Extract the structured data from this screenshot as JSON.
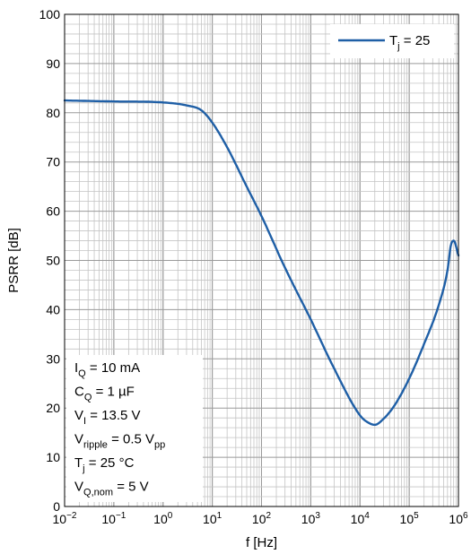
{
  "chart_data": {
    "type": "line",
    "xlabel": "f [Hz]",
    "ylabel": "PSRR [dB]",
    "xscale": "log",
    "xlim": [
      0.01,
      1000000
    ],
    "ylim": [
      0,
      100
    ],
    "grid": true,
    "legend_position": "top-right",
    "x_ticks": [
      {
        "base": "10",
        "exp": "−2"
      },
      {
        "base": "10",
        "exp": "−1"
      },
      {
        "base": "10",
        "exp": "0"
      },
      {
        "base": "10",
        "exp": "1"
      },
      {
        "base": "10",
        "exp": "2"
      },
      {
        "base": "10",
        "exp": "3"
      },
      {
        "base": "10",
        "exp": "4"
      },
      {
        "base": "10",
        "exp": "5"
      },
      {
        "base": "10",
        "exp": "6"
      }
    ],
    "y_ticks": [
      "0",
      "10",
      "20",
      "30",
      "40",
      "50",
      "60",
      "70",
      "80",
      "90",
      "100"
    ],
    "series": [
      {
        "legend": {
          "main": "T",
          "sub": "j",
          "rest": " = 25"
        },
        "color": "#1f5fa6",
        "x": [
          0.01,
          0.1,
          1,
          3,
          6,
          10,
          20,
          50,
          100,
          300,
          1000,
          3000,
          10000,
          15000,
          20000,
          30000,
          50000,
          100000,
          200000,
          400000,
          600000,
          700000,
          800000,
          1000000
        ],
        "y": [
          82.5,
          82.3,
          82.1,
          81.5,
          80.5,
          78,
          73,
          65,
          59,
          48.5,
          38,
          28,
          18.5,
          17,
          16.6,
          17.8,
          20.5,
          26,
          33,
          41,
          48,
          53,
          54,
          51
        ]
      }
    ],
    "annotation": [
      {
        "main": "I",
        "sub": "Q",
        "rest": " = 10 mA",
        "rest_sub": ""
      },
      {
        "main": "C",
        "sub": "Q",
        "rest": " = 1 µF",
        "rest_sub": ""
      },
      {
        "main": "V",
        "sub": "I",
        "rest": " = 13.5 V",
        "rest_sub": ""
      },
      {
        "main": "V",
        "sub": "ripple",
        "rest": " = 0.5 V",
        "rest_sub": "pp"
      },
      {
        "main": "T",
        "sub": "j",
        "rest": " = 25 °C",
        "rest_sub": ""
      },
      {
        "main": "V",
        "sub": "Q,nom",
        "rest": " = 5 V",
        "rest_sub": ""
      }
    ]
  }
}
